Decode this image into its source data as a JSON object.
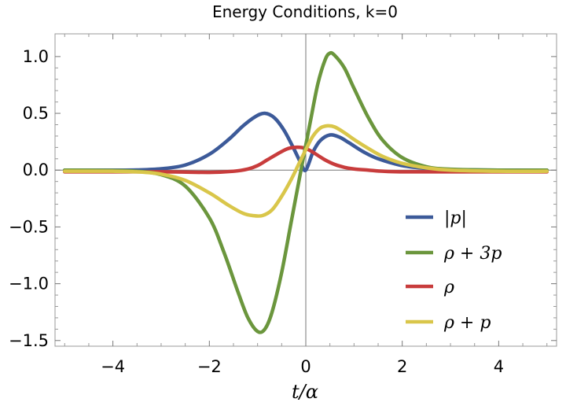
{
  "chart_data": {
    "type": "line",
    "title": "Energy Conditions, k=0",
    "xlabel": "t/α",
    "ylabel": "",
    "xlim": [
      -5.2,
      5.2
    ],
    "ylim": [
      -1.55,
      1.2
    ],
    "xticks": [
      -4,
      -2,
      0,
      2,
      4
    ],
    "xtick_labels": [
      "−4",
      "−2",
      "0",
      "2",
      "4"
    ],
    "yticks": [
      1.0,
      0.5,
      0.0,
      -0.5,
      -1.0,
      -1.5
    ],
    "ytick_labels": [
      "1.0",
      "0.5",
      "0.0",
      "−0.5",
      "−1.0",
      "−1.5"
    ],
    "legend_position": "right",
    "series": [
      {
        "name": "|p|",
        "color": "#3c5a99",
        "x": [
          -5.0,
          -4.0,
          -3.5,
          -3.0,
          -2.5,
          -2.0,
          -1.6,
          -1.3,
          -1.05,
          -0.85,
          -0.65,
          -0.45,
          -0.25,
          -0.1,
          0.0,
          0.15,
          0.3,
          0.5,
          0.7,
          0.9,
          1.2,
          1.5,
          2.0,
          2.5,
          3.0,
          4.0,
          5.0
        ],
        "y": [
          0.0,
          0.0,
          0.002,
          0.012,
          0.045,
          0.14,
          0.27,
          0.39,
          0.47,
          0.5,
          0.46,
          0.35,
          0.19,
          0.06,
          0.0,
          0.16,
          0.26,
          0.31,
          0.29,
          0.24,
          0.16,
          0.1,
          0.04,
          0.015,
          0.005,
          0.0,
          0.0
        ]
      },
      {
        "name": "ρ + 3p",
        "color": "#6b963d",
        "x": [
          -5.0,
          -4.0,
          -3.5,
          -3.0,
          -2.5,
          -2.0,
          -1.7,
          -1.4,
          -1.2,
          -1.0,
          -0.85,
          -0.7,
          -0.5,
          -0.3,
          -0.1,
          0.0,
          0.1,
          0.25,
          0.4,
          0.5,
          0.6,
          0.8,
          1.0,
          1.3,
          1.6,
          2.0,
          2.5,
          3.0,
          4.0,
          5.0
        ],
        "y": [
          0.0,
          -0.003,
          -0.01,
          -0.04,
          -0.14,
          -0.42,
          -0.72,
          -1.08,
          -1.3,
          -1.42,
          -1.4,
          -1.25,
          -0.9,
          -0.45,
          0.0,
          0.22,
          0.44,
          0.76,
          0.97,
          1.03,
          1.01,
          0.9,
          0.72,
          0.46,
          0.26,
          0.11,
          0.03,
          0.008,
          0.0,
          0.0
        ]
      },
      {
        "name": "ρ",
        "color": "#c83c3c",
        "x": [
          -5.0,
          -3.0,
          -2.0,
          -1.5,
          -1.2,
          -1.0,
          -0.8,
          -0.6,
          -0.4,
          -0.25,
          -0.1,
          0.0,
          0.1,
          0.25,
          0.4,
          0.6,
          0.8,
          1.0,
          1.3,
          1.6,
          2.0,
          3.0,
          5.0
        ],
        "y": [
          -0.015,
          -0.015,
          -0.02,
          -0.01,
          0.01,
          0.04,
          0.09,
          0.14,
          0.185,
          0.2,
          0.2,
          0.19,
          0.17,
          0.13,
          0.09,
          0.05,
          0.025,
          0.01,
          0.0,
          -0.01,
          -0.015,
          -0.015,
          -0.015
        ]
      },
      {
        "name": "ρ + p",
        "color": "#d9c64a",
        "x": [
          -5.0,
          -4.0,
          -3.5,
          -3.0,
          -2.5,
          -2.0,
          -1.6,
          -1.3,
          -1.1,
          -0.9,
          -0.7,
          -0.5,
          -0.3,
          -0.15,
          0.0,
          0.15,
          0.3,
          0.45,
          0.6,
          0.8,
          1.0,
          1.3,
          1.6,
          2.0,
          2.5,
          3.0,
          4.0,
          5.0
        ],
        "y": [
          -0.01,
          -0.01,
          -0.015,
          -0.035,
          -0.09,
          -0.2,
          -0.31,
          -0.38,
          -0.4,
          -0.4,
          -0.35,
          -0.23,
          -0.08,
          0.05,
          0.18,
          0.3,
          0.37,
          0.39,
          0.38,
          0.33,
          0.27,
          0.19,
          0.12,
          0.06,
          0.02,
          0.0,
          -0.01,
          -0.01
        ]
      }
    ]
  }
}
